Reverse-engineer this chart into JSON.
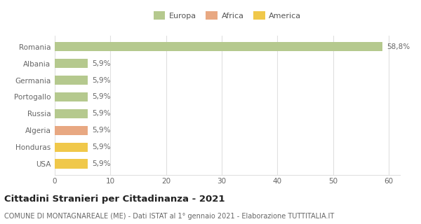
{
  "categories": [
    "Romania",
    "Albania",
    "Germania",
    "Portogallo",
    "Russia",
    "Algeria",
    "Honduras",
    "USA"
  ],
  "values": [
    58.8,
    5.9,
    5.9,
    5.9,
    5.9,
    5.9,
    5.9,
    5.9
  ],
  "labels": [
    "58,8%",
    "5,9%",
    "5,9%",
    "5,9%",
    "5,9%",
    "5,9%",
    "5,9%",
    "5,9%"
  ],
  "colors": [
    "#b5c98e",
    "#b5c98e",
    "#b5c98e",
    "#b5c98e",
    "#b5c98e",
    "#e8a882",
    "#f0c84a",
    "#f0c84a"
  ],
  "legend": [
    {
      "label": "Europa",
      "color": "#b5c98e"
    },
    {
      "label": "Africa",
      "color": "#e8a882"
    },
    {
      "label": "America",
      "color": "#f0c84a"
    }
  ],
  "xlim": [
    0,
    62
  ],
  "xticks": [
    0,
    10,
    20,
    30,
    40,
    50,
    60
  ],
  "title": "Cittadini Stranieri per Cittadinanza - 2021",
  "subtitle": "COMUNE DI MONTAGNAREALE (ME) - Dati ISTAT al 1° gennaio 2021 - Elaborazione TUTTITALIA.IT",
  "background_color": "#ffffff",
  "grid_color": "#e0e0e0",
  "bar_height": 0.55,
  "label_fontsize": 7.5,
  "tick_fontsize": 7.5,
  "title_fontsize": 9.5,
  "subtitle_fontsize": 7.0
}
